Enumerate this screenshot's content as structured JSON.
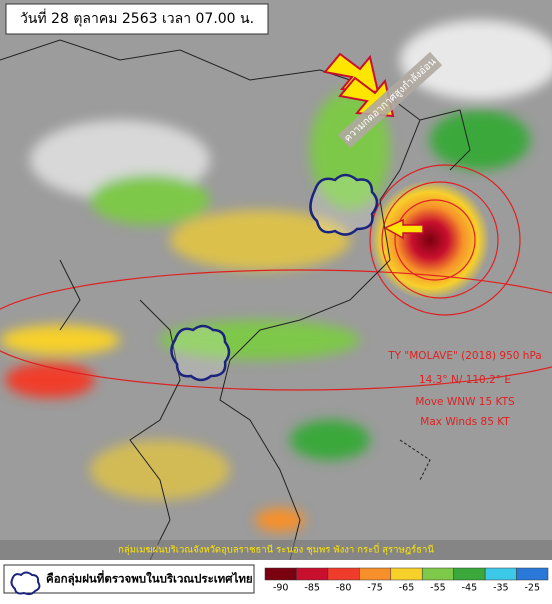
{
  "header": {
    "title": "วันที่ 28 ตุลาคม 2563 เวลา 07.00 น."
  },
  "annotations": {
    "cold_air": "ความกดอากาศสูงกำลังอ่อน",
    "storm": [
      "TY \"MOLAVE\" (2018) 950 hPa",
      "14.3° N/ 110.2° E",
      "Move WNW  15 KTS",
      "Max Winds 85 KT"
    ],
    "rain_areas": "กลุ่มเมฆฝนบริเวณจังหวัดอุบลราชธานี ระนอง ชุมพร พังงา กระบี่ สุราษฎร์ธานี"
  },
  "legend": {
    "cloud_icon": "คือกลุ่มฝนที่ตรวจพบในบริเวณประเทศไทย"
  },
  "scale": {
    "ticks": [
      -90,
      -85,
      -80,
      -75,
      -65,
      -55,
      -45,
      -35,
      -25
    ],
    "colors": [
      "#7a0010",
      "#c8102e",
      "#f03c2a",
      "#f7902a",
      "#f7d02a",
      "#7ec84a",
      "#3aa83a",
      "#3cc8e8",
      "#2a78d8"
    ]
  }
}
